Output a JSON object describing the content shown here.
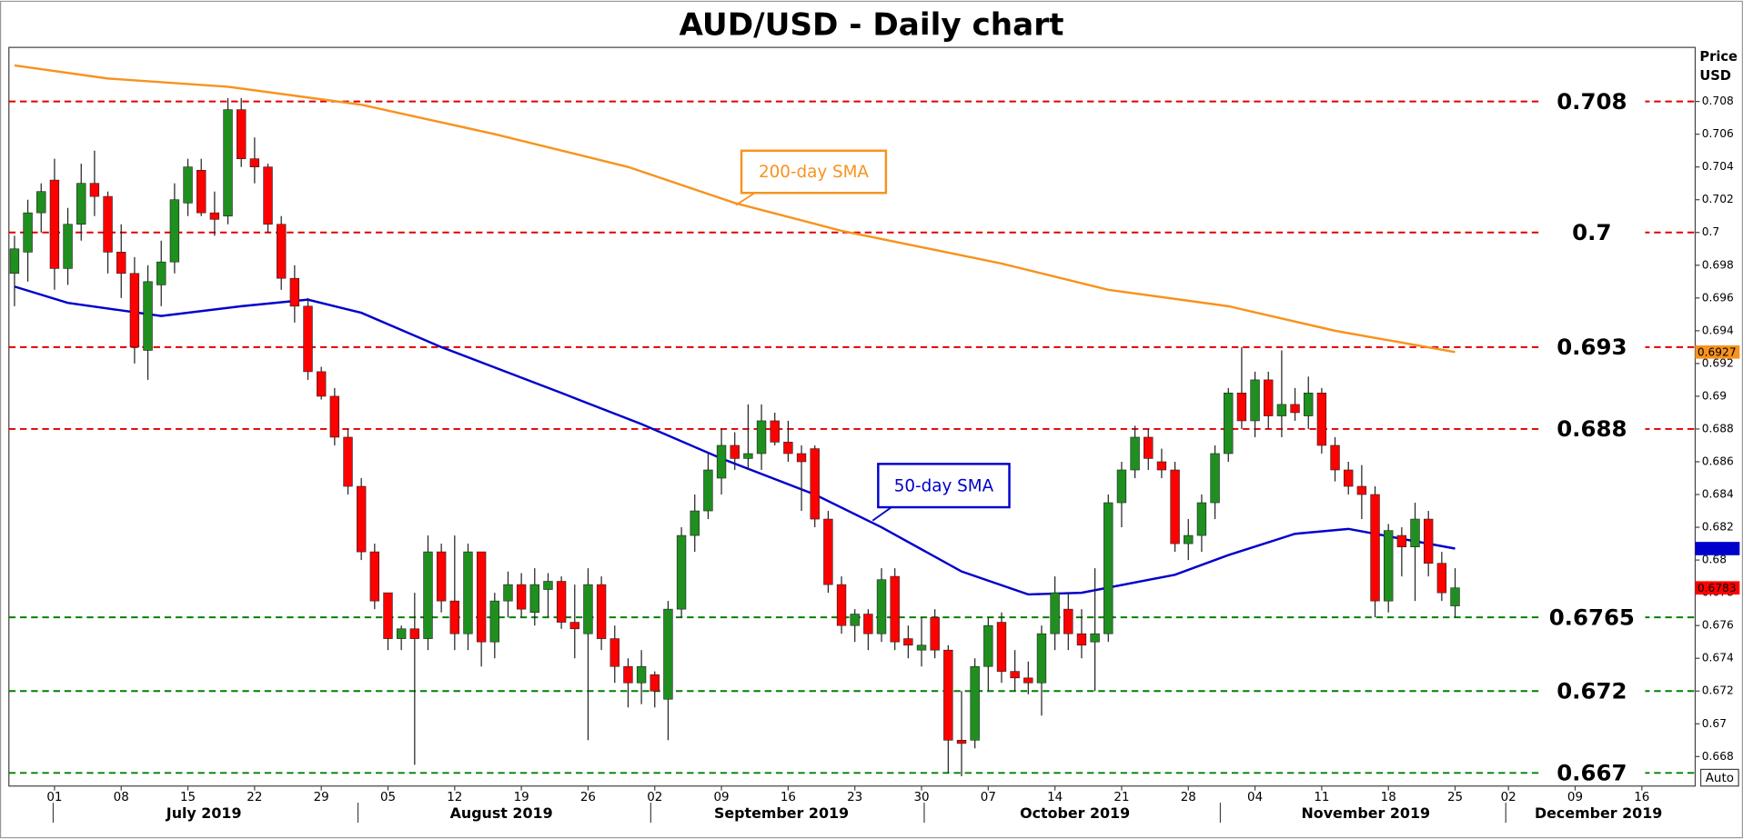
{
  "chart_data": {
    "type": "candlestick",
    "title": "AUD/USD - Daily chart",
    "y_axis_label": [
      "Price",
      "USD"
    ],
    "corner_label": "Auto",
    "xlim": [
      -0.42,
      126
    ],
    "ylim": [
      0.6662,
      0.7113
    ],
    "yticks": [
      0.668,
      0.67,
      0.672,
      0.674,
      0.676,
      0.678,
      0.68,
      0.682,
      0.684,
      0.686,
      0.688,
      0.69,
      0.692,
      0.694,
      0.696,
      0.698,
      0.7,
      0.702,
      0.704,
      0.706,
      0.708
    ],
    "xticks": [
      {
        "value": 3,
        "label": "01"
      },
      {
        "value": 8,
        "label": "08"
      },
      {
        "value": 13,
        "label": "15"
      },
      {
        "value": 18,
        "label": "22"
      },
      {
        "value": 23,
        "label": "29"
      },
      {
        "value": 28,
        "label": "05"
      },
      {
        "value": 33,
        "label": "12"
      },
      {
        "value": 38,
        "label": "19"
      },
      {
        "value": 43,
        "label": "26"
      },
      {
        "value": 48,
        "label": "02"
      },
      {
        "value": 53,
        "label": "09"
      },
      {
        "value": 58,
        "label": "16"
      },
      {
        "value": 63,
        "label": "23"
      },
      {
        "value": 68,
        "label": "30"
      },
      {
        "value": 73,
        "label": "07"
      },
      {
        "value": 78,
        "label": "14"
      },
      {
        "value": 83,
        "label": "21"
      },
      {
        "value": 88,
        "label": "28"
      },
      {
        "value": 93,
        "label": "04"
      },
      {
        "value": 98,
        "label": "11"
      },
      {
        "value": 103,
        "label": "18"
      },
      {
        "value": 108,
        "label": "25"
      },
      {
        "value": 112,
        "label": "02"
      },
      {
        "value": 117,
        "label": "09"
      },
      {
        "value": 122,
        "label": "16"
      }
    ],
    "month_labels": [
      {
        "value": 14.2,
        "label": "July 2019"
      },
      {
        "value": 36.5,
        "label": "August 2019"
      },
      {
        "value": 57.5,
        "label": "September 2019"
      },
      {
        "value": 79.5,
        "label": "October 2019"
      },
      {
        "value": 101.3,
        "label": "November 2019"
      },
      {
        "value": 118.75,
        "label": "December 2019"
      }
    ],
    "month_ticks": [
      2.9,
      25.75,
      47.7,
      68.2,
      90.4,
      111.8
    ],
    "up_color": "#1f8f1f",
    "down_color": "#ff0000",
    "open": [
      0.6975,
      0.6988,
      0.7012,
      0.7032,
      0.6978,
      0.7005,
      0.703,
      0.7022,
      0.6988,
      0.6975,
      0.6928,
      0.6968,
      0.6982,
      0.7018,
      0.7038,
      0.7012,
      0.701,
      0.7075,
      0.7045,
      0.704,
      0.7005,
      0.6972,
      0.6955,
      0.6915,
      0.69,
      0.6875,
      0.6845,
      0.6805,
      0.678,
      0.6752,
      0.6758,
      0.6752,
      0.6805,
      0.6775,
      0.6755,
      0.6805,
      0.675,
      0.6775,
      0.6785,
      0.6768,
      0.6782,
      0.6787,
      0.6762,
      0.6755,
      0.6785,
      0.6752,
      0.6735,
      0.6725,
      0.673,
      0.6715,
      0.677,
      0.6815,
      0.683,
      0.685,
      0.687,
      0.6862,
      0.6865,
      0.6885,
      0.6872,
      0.6865,
      0.6868,
      0.6825,
      0.6785,
      0.676,
      0.6767,
      0.6755,
      0.679,
      0.6752,
      0.6745,
      0.6765,
      0.6745,
      0.669,
      0.669,
      0.6735,
      0.6762,
      0.6732,
      0.6728,
      0.6725,
      0.6755,
      0.677,
      0.6755,
      0.675,
      0.6755,
      0.6835,
      0.6855,
      0.6875,
      0.686,
      0.6855,
      0.681,
      0.6815,
      0.6835,
      0.6865,
      0.6902,
      0.6885,
      0.691,
      0.6888,
      0.6895,
      0.6888,
      0.6902,
      0.687,
      0.6855,
      0.6845,
      0.684,
      0.6775,
      0.6815,
      0.6808,
      0.6825,
      0.6798,
      0.6772
    ],
    "high": [
      0.6998,
      0.702,
      0.703,
      0.7045,
      0.7015,
      0.7042,
      0.705,
      0.7025,
      0.7005,
      0.6985,
      0.698,
      0.6995,
      0.703,
      0.7045,
      0.7045,
      0.7025,
      0.7082,
      0.7082,
      0.7058,
      0.7042,
      0.701,
      0.698,
      0.696,
      0.6918,
      0.6905,
      0.688,
      0.685,
      0.681,
      0.678,
      0.676,
      0.678,
      0.6815,
      0.681,
      0.6815,
      0.681,
      0.6805,
      0.678,
      0.6793,
      0.6792,
      0.6795,
      0.6792,
      0.679,
      0.6785,
      0.6795,
      0.679,
      0.676,
      0.674,
      0.6745,
      0.6732,
      0.6775,
      0.682,
      0.684,
      0.6865,
      0.688,
      0.6878,
      0.6895,
      0.6895,
      0.689,
      0.6885,
      0.687,
      0.687,
      0.683,
      0.679,
      0.677,
      0.677,
      0.6795,
      0.6795,
      0.676,
      0.6765,
      0.677,
      0.6748,
      0.672,
      0.674,
      0.6765,
      0.6768,
      0.6745,
      0.6738,
      0.676,
      0.679,
      0.678,
      0.677,
      0.6795,
      0.684,
      0.686,
      0.6882,
      0.688,
      0.6868,
      0.686,
      0.6825,
      0.684,
      0.687,
      0.6905,
      0.693,
      0.6915,
      0.6915,
      0.6928,
      0.6905,
      0.6912,
      0.6905,
      0.6875,
      0.686,
      0.6858,
      0.6845,
      0.6822,
      0.682,
      0.6835,
      0.683,
      0.6805,
      0.6795
    ],
    "low": [
      0.6955,
      0.697,
      0.7,
      0.6965,
      0.6968,
      0.6995,
      0.701,
      0.6975,
      0.696,
      0.692,
      0.691,
      0.6955,
      0.6975,
      0.701,
      0.701,
      0.6998,
      0.7005,
      0.704,
      0.703,
      0.7,
      0.6965,
      0.6945,
      0.691,
      0.6898,
      0.687,
      0.684,
      0.68,
      0.677,
      0.6745,
      0.6745,
      0.6675,
      0.6745,
      0.6768,
      0.6745,
      0.6745,
      0.6735,
      0.674,
      0.6765,
      0.6765,
      0.676,
      0.6765,
      0.6758,
      0.674,
      0.669,
      0.6745,
      0.6725,
      0.671,
      0.6712,
      0.671,
      0.669,
      0.6765,
      0.6805,
      0.6825,
      0.684,
      0.6855,
      0.6855,
      0.6855,
      0.687,
      0.686,
      0.683,
      0.682,
      0.678,
      0.6755,
      0.675,
      0.6745,
      0.675,
      0.6745,
      0.674,
      0.6735,
      0.674,
      0.667,
      0.6668,
      0.6685,
      0.672,
      0.6725,
      0.672,
      0.6718,
      0.6705,
      0.6745,
      0.6745,
      0.674,
      0.672,
      0.675,
      0.682,
      0.685,
      0.6855,
      0.685,
      0.6805,
      0.68,
      0.6805,
      0.6825,
      0.686,
      0.688,
      0.6875,
      0.688,
      0.6875,
      0.6885,
      0.688,
      0.6865,
      0.6848,
      0.684,
      0.6825,
      0.6765,
      0.6768,
      0.679,
      0.6775,
      0.679,
      0.6775,
      0.6765
    ],
    "close": [
      0.699,
      0.7012,
      0.7025,
      0.6978,
      0.7005,
      0.703,
      0.7022,
      0.6988,
      0.6975,
      0.693,
      0.697,
      0.6982,
      0.702,
      0.704,
      0.7012,
      0.7008,
      0.7075,
      0.7045,
      0.704,
      0.7005,
      0.6972,
      0.6955,
      0.6915,
      0.69,
      0.6875,
      0.6845,
      0.6805,
      0.6775,
      0.6752,
      0.6758,
      0.6752,
      0.6805,
      0.6775,
      0.6755,
      0.6805,
      0.675,
      0.6775,
      0.6785,
      0.677,
      0.6785,
      0.6787,
      0.6762,
      0.6758,
      0.6785,
      0.6752,
      0.6735,
      0.6725,
      0.6735,
      0.672,
      0.677,
      0.6815,
      0.683,
      0.6855,
      0.687,
      0.6862,
      0.6865,
      0.6885,
      0.6872,
      0.6865,
      0.686,
      0.6825,
      0.6785,
      0.676,
      0.6767,
      0.6755,
      0.6788,
      0.675,
      0.6748,
      0.6748,
      0.6745,
      0.669,
      0.6688,
      0.6735,
      0.676,
      0.6732,
      0.6728,
      0.6725,
      0.6755,
      0.678,
      0.6755,
      0.6748,
      0.6755,
      0.6835,
      0.6855,
      0.6875,
      0.6862,
      0.6855,
      0.681,
      0.6815,
      0.6835,
      0.6865,
      0.6902,
      0.6885,
      0.691,
      0.6888,
      0.6895,
      0.689,
      0.6902,
      0.687,
      0.6855,
      0.6845,
      0.684,
      0.6775,
      0.6818,
      0.6808,
      0.6825,
      0.6798,
      0.678,
      0.6783
    ],
    "series": [
      {
        "name": "200-day SMA",
        "color": "#f7931e",
        "x": [
          0,
          7,
          16,
          26,
          36,
          46,
          54,
          62,
          74,
          82,
          91,
          99,
          108
        ],
        "values": [
          0.7102,
          0.7094,
          0.7089,
          0.7078,
          0.706,
          0.704,
          0.7018,
          0.7001,
          0.6981,
          0.6965,
          0.6955,
          0.694,
          0.6927
        ]
      },
      {
        "name": "50-day SMA",
        "color": "#0000cc",
        "x": [
          0,
          4,
          11,
          17,
          22,
          26,
          32,
          41,
          47,
          53,
          60,
          65,
          71,
          76,
          80,
          87,
          91,
          96,
          100,
          104,
          108
        ],
        "values": [
          0.6967,
          0.6957,
          0.6949,
          0.6955,
          0.6959,
          0.6951,
          0.693,
          0.6902,
          0.6883,
          0.6862,
          0.684,
          0.682,
          0.6793,
          0.6779,
          0.678,
          0.6791,
          0.6803,
          0.6816,
          0.6819,
          0.6813,
          0.6807
        ]
      }
    ],
    "levels": [
      {
        "value": 0.708,
        "color": "#e00000"
      },
      {
        "value": 0.7,
        "color": "#e00000"
      },
      {
        "value": 0.693,
        "color": "#e00000"
      },
      {
        "value": 0.688,
        "color": "#e00000"
      },
      {
        "value": 0.6765,
        "color": "#008000"
      },
      {
        "value": 0.672,
        "color": "#008000"
      },
      {
        "value": 0.667,
        "color": "#008000"
      }
    ],
    "price_tags": [
      {
        "value": 0.6927,
        "color": "#f7931e"
      },
      {
        "value": 0.6783,
        "color": "#ff0000"
      }
    ]
  }
}
